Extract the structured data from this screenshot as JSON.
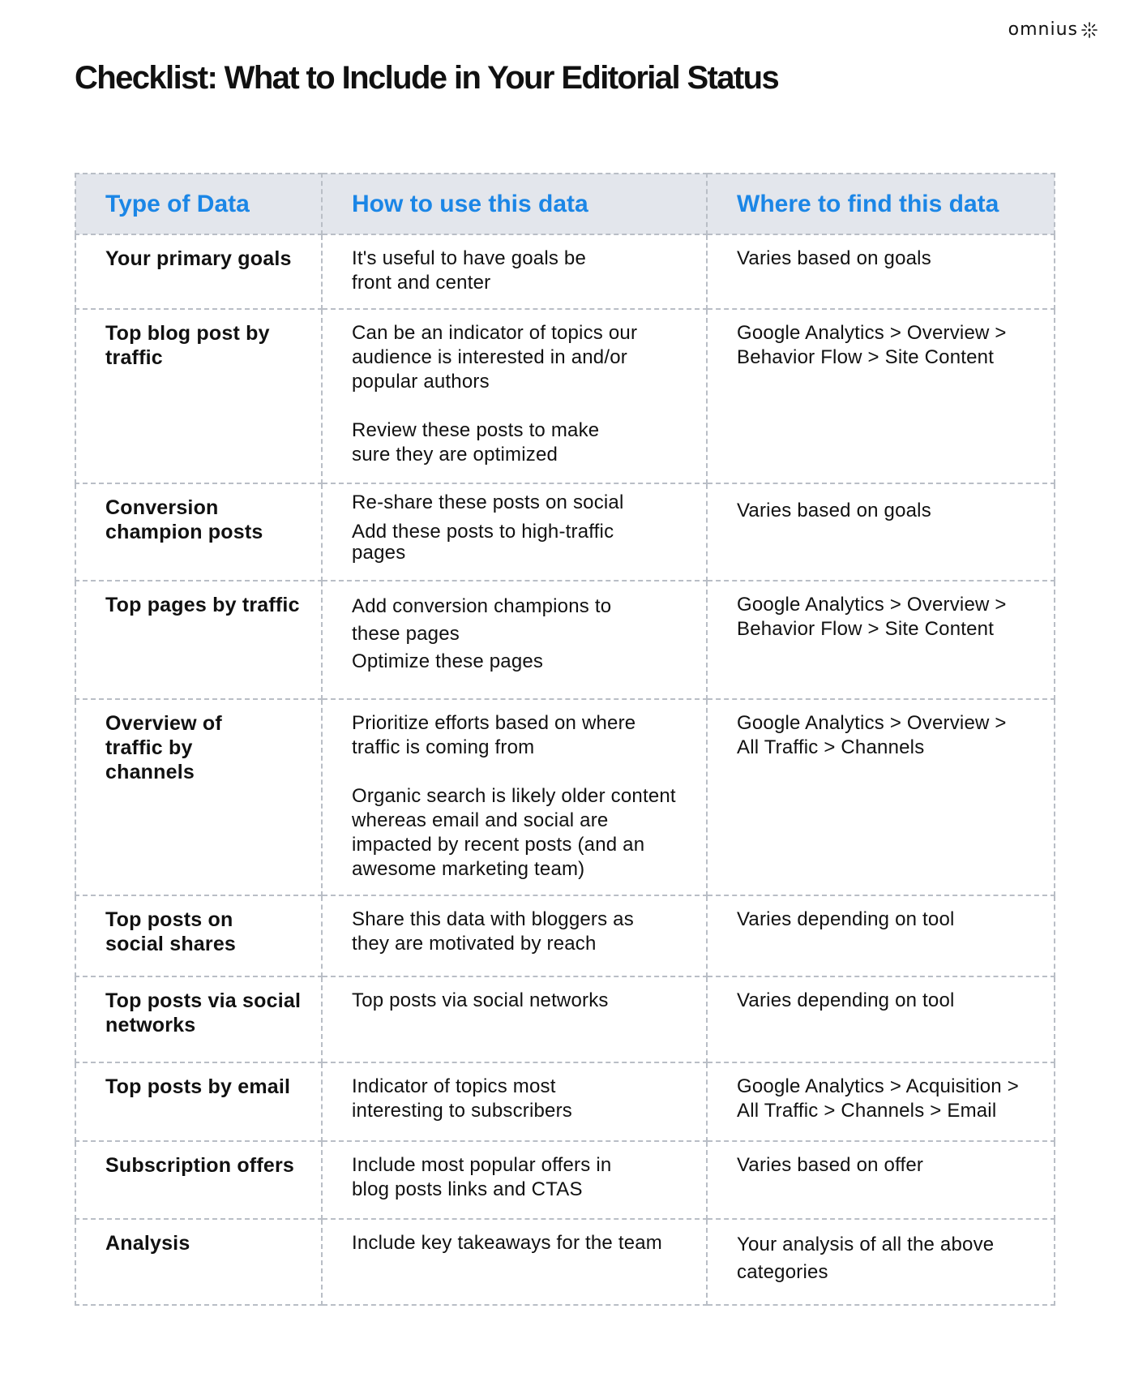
{
  "brand": {
    "name": "omnius"
  },
  "title": "Checklist: What to Include in Your Editorial Status",
  "table": {
    "headers": [
      "Type of Data",
      "How to use this data",
      "Where to find this data"
    ],
    "rows": [
      {
        "type": "Your primary goals",
        "how": [
          "It's useful to have goals be front and center"
        ],
        "where": "Varies based on goals"
      },
      {
        "type": "Top blog post by traffic",
        "how": [
          "Can be an indicator of topics our audience is interested in and/or popular authors",
          "Review these posts to make sure they are optimized"
        ],
        "where": "Google Analytics > Overview > Behavior Flow > Site Content"
      },
      {
        "type": "Conversion champion posts",
        "how": [
          "Re-share these posts on social",
          "Add these posts to high-traffic pages"
        ],
        "where": "Varies based on goals"
      },
      {
        "type": "Top pages by traffic",
        "how": [
          "Add conversion champions to these pages",
          "Optimize these pages"
        ],
        "where": "Google Analytics > Overview > Behavior Flow > Site Content"
      },
      {
        "type": "Overview of traffic by channels",
        "how": [
          "Prioritize efforts based on where traffic is coming from",
          "Organic search is likely older content whereas email and social are impacted by recent posts (and an awesome marketing team)"
        ],
        "where": "Google Analytics > Overview > All Traffic > Channels"
      },
      {
        "type": "Top posts on social shares",
        "how": [
          "Share this data with bloggers as they are motivated by reach"
        ],
        "where": "Varies depending on tool"
      },
      {
        "type": "Top posts via social networks",
        "how": [
          "Top posts via social networks"
        ],
        "where": "Varies depending on tool"
      },
      {
        "type": "Top posts by email",
        "how": [
          "Indicator of topics most interesting to subscribers"
        ],
        "where": "Google Analytics > Acquisition > All Traffic > Channels > Email"
      },
      {
        "type": "Subscription offers",
        "how": [
          "Include most popular offers in blog posts links and CTAS"
        ],
        "where": "Varies based on offer"
      },
      {
        "type": "Analysis",
        "how": [
          "Include key takeaways for the team"
        ],
        "where": "Your analysis of all the above categories"
      }
    ]
  }
}
